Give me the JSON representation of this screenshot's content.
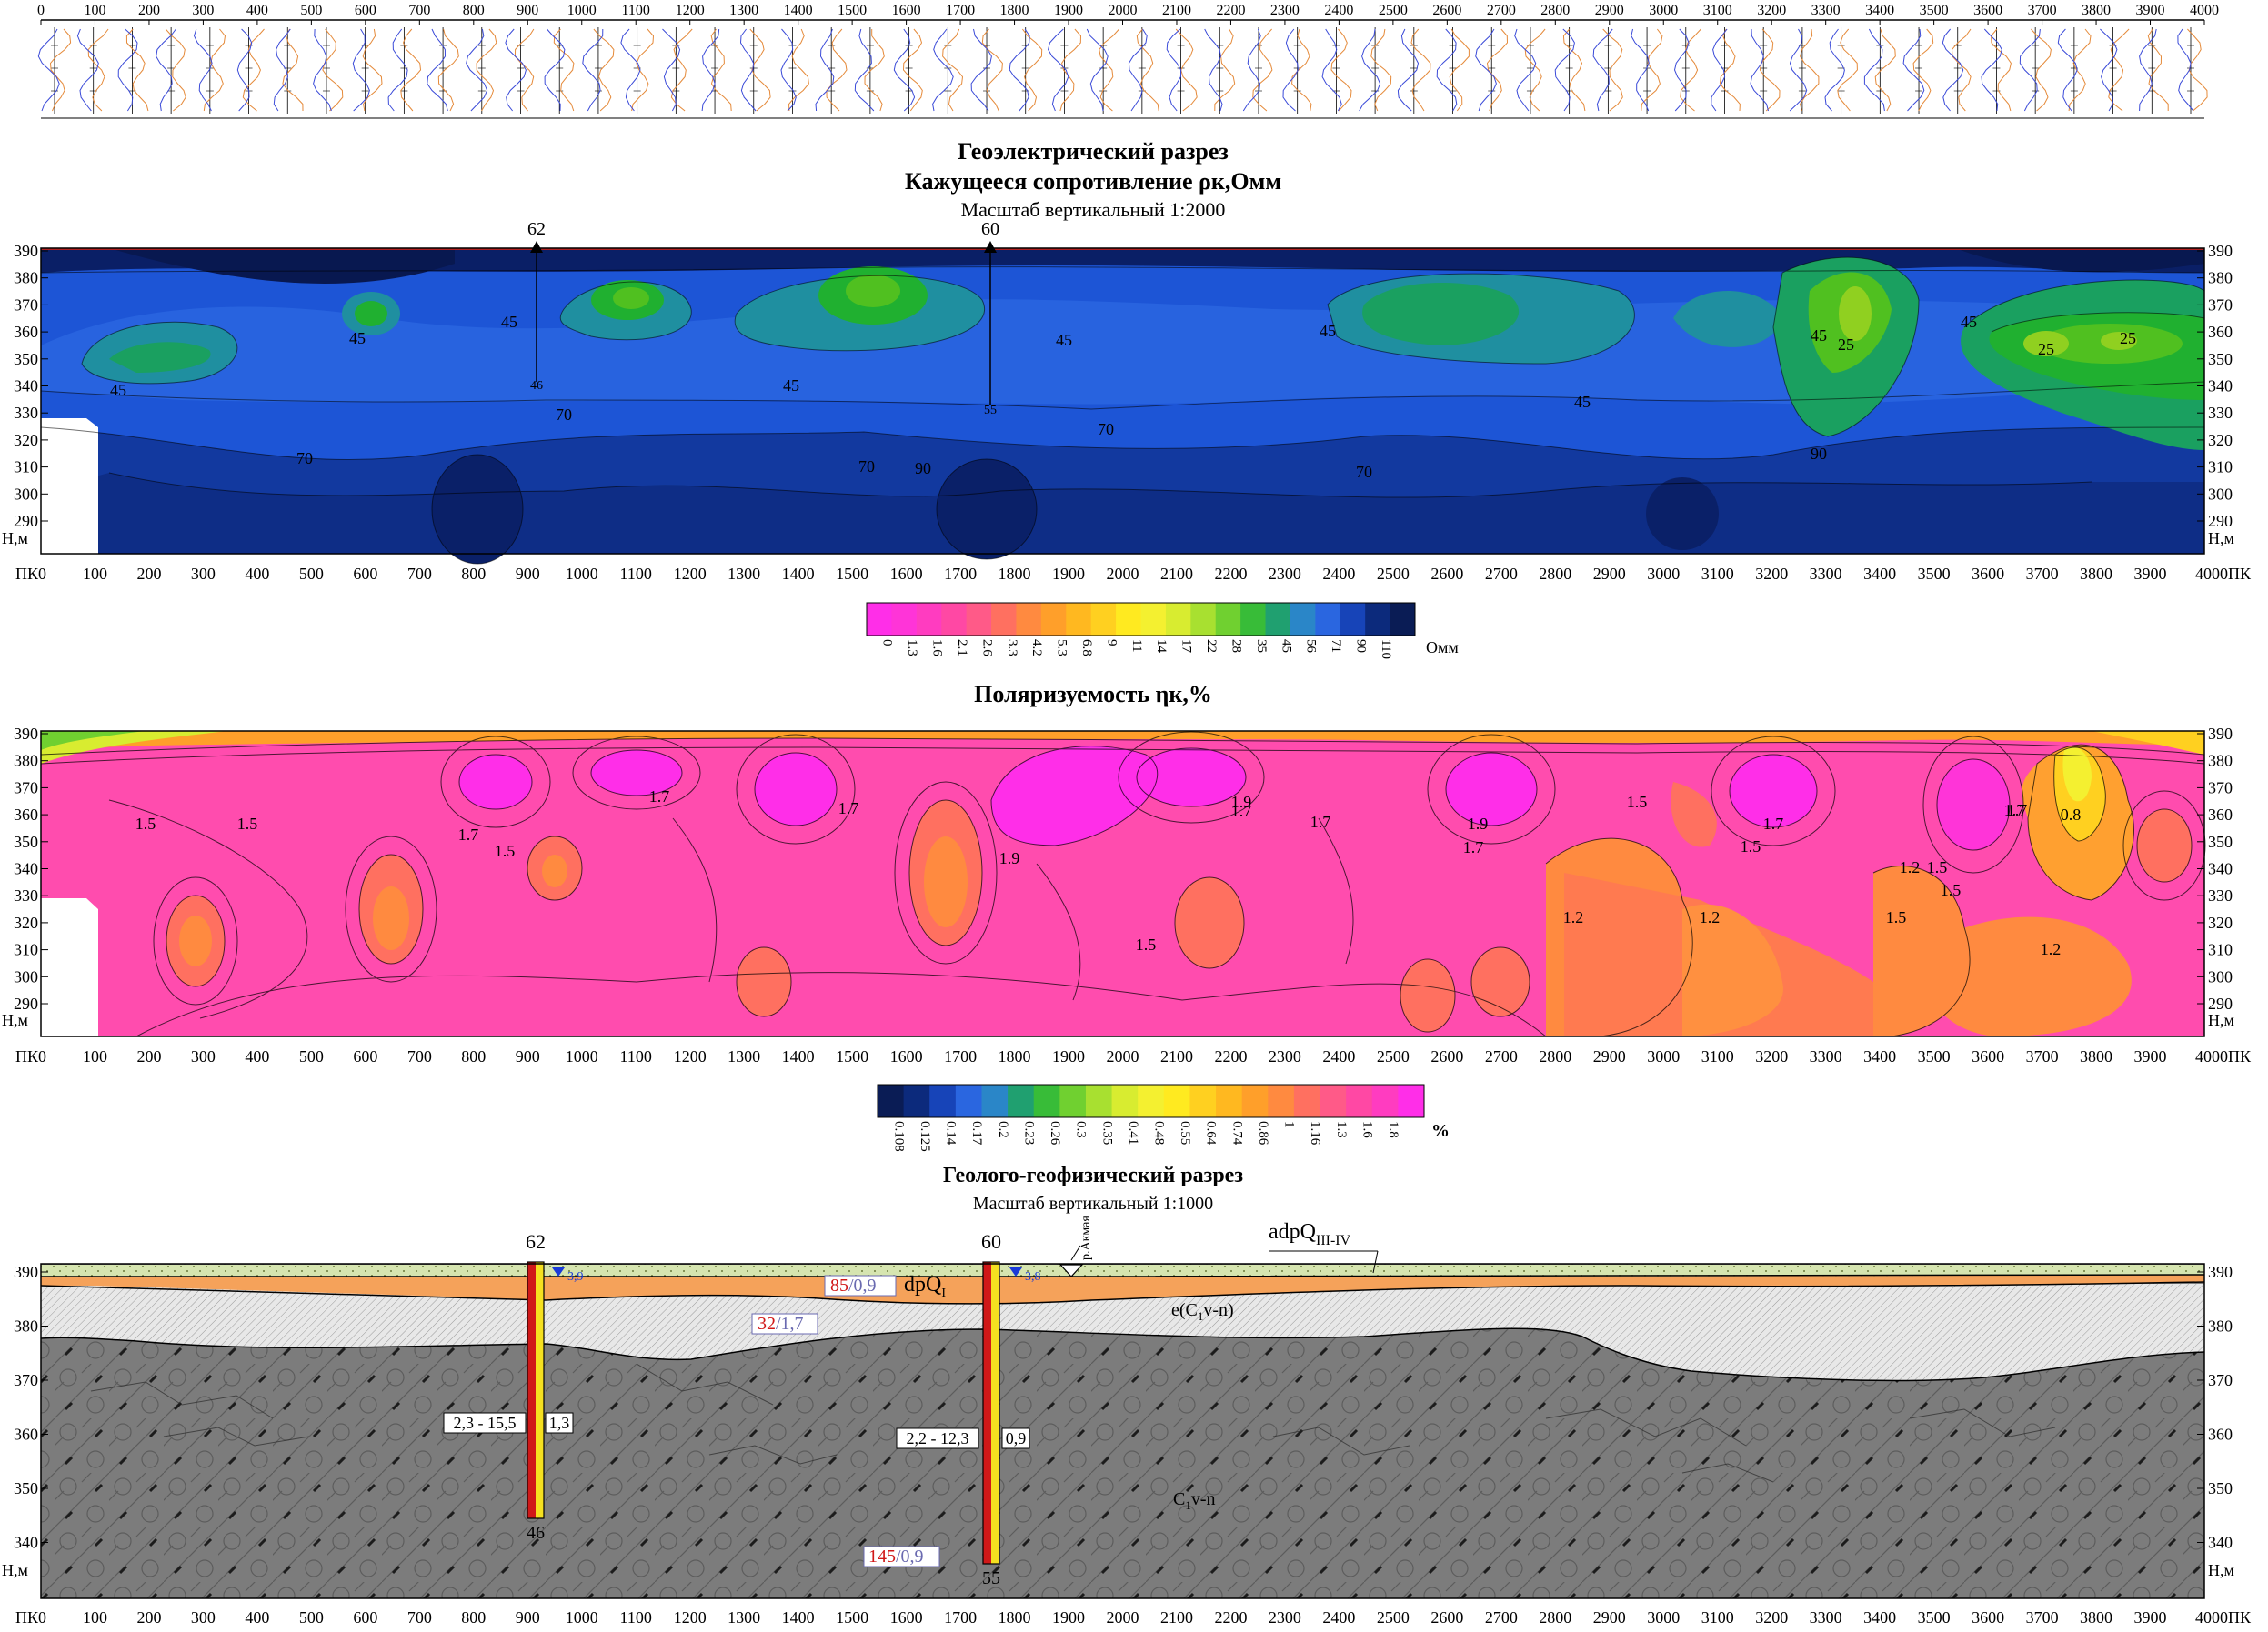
{
  "top_strip": {
    "ticks": [
      "0",
      "100",
      "200",
      "300",
      "400",
      "500",
      "600",
      "700",
      "800",
      "900",
      "1000",
      "1100",
      "1200",
      "1300",
      "1400",
      "1500",
      "1600",
      "1700",
      "1800",
      "1900",
      "2000",
      "2100",
      "2200",
      "2300",
      "2400",
      "2500",
      "2600",
      "2700",
      "2800",
      "2900",
      "3000",
      "3100",
      "3200",
      "3300",
      "3400",
      "3500",
      "3600",
      "3700",
      "3800",
      "3900",
      "4000"
    ]
  },
  "resistivity": {
    "title": "Геоэлектрический разрез",
    "subtitle": "Кажущееся сопротивление  ρк,Омм",
    "scale": "Масштаб вертикальный 1:2000",
    "well_labels": [
      "62",
      "60"
    ],
    "well_bottoms": [
      "46",
      "55"
    ],
    "contour_labels": [
      "45",
      "45",
      "45",
      "45",
      "45",
      "45",
      "45",
      "45",
      "45",
      "25",
      "25",
      "25",
      "70",
      "70",
      "70",
      "70",
      "70",
      "90",
      "90"
    ],
    "colors": [
      "#0a1f66",
      "#0c2d8c",
      "#1748c0",
      "#2a66e0",
      "#2f7fd8",
      "#1f8fa0",
      "#1aa060",
      "#20b030",
      "#50c020",
      "#90d020"
    ],
    "legend": {
      "values": [
        "0",
        "1.3",
        "1.6",
        "2.1",
        "2.6",
        "3.3",
        "4.2",
        "5.3",
        "6.8",
        "9",
        "11",
        "14",
        "17",
        "22",
        "28",
        "35",
        "45",
        "56",
        "71",
        "90",
        "110"
      ],
      "colors": [
        "#ff2ee8",
        "#ff34d8",
        "#ff3cc0",
        "#ff48a4",
        "#ff5a88",
        "#ff7060",
        "#ff8a40",
        "#ff9f2a",
        "#ffb820",
        "#ffd020",
        "#ffea20",
        "#f4f030",
        "#d8ec30",
        "#a8e030",
        "#70d030",
        "#38bc38",
        "#20a070",
        "#2a86c8",
        "#2a66e0",
        "#1744b8",
        "#0c2a7c",
        "#0a1c55"
      ],
      "unit": "Омм"
    }
  },
  "polarizability": {
    "title": "Поляризуемость  ηк,%",
    "contour_labels": [
      "1.5",
      "1.5",
      "1.7",
      "1.5",
      "1.7",
      "1.7",
      "1.5",
      "1.9",
      "1.9",
      "1.7",
      "1.7",
      "1.9",
      "1.7",
      "1.5",
      "1.5",
      "1.7",
      "1.5",
      "1.2",
      "1.5",
      "1.2",
      "1.2",
      "1.5",
      "1.2",
      "1.7",
      "1.7",
      "0.8"
    ],
    "legend": {
      "values": [
        "0.108",
        "0.125",
        "0.14",
        "0.17",
        "0.2",
        "0.23",
        "0.26",
        "0.3",
        "0.35",
        "0.41",
        "0.48",
        "0.55",
        "0.64",
        "0.74",
        "0.86",
        "1",
        "1.16",
        "1.3",
        "1.6",
        "1.8"
      ],
      "colors": [
        "#0a1c55",
        "#0c2a7c",
        "#1744b8",
        "#2a66e0",
        "#2a86c8",
        "#20a070",
        "#38bc38",
        "#70d030",
        "#a8e030",
        "#d8ec30",
        "#f4f030",
        "#ffea20",
        "#ffd020",
        "#ffb820",
        "#ff9f2a",
        "#ff8a40",
        "#ff7060",
        "#ff5a88",
        "#ff48a4",
        "#ff3cc0",
        "#ff2ee8"
      ],
      "unit": "%"
    }
  },
  "geology": {
    "title": "Геолого-геофизический разрез",
    "scale": "Масштаб вертикальный 1:1000",
    "well_labels": [
      "62",
      "60"
    ],
    "well_bottoms": [
      "46",
      "55"
    ],
    "water_levels": [
      "3,9",
      "3,8"
    ],
    "river": "р.Акмая",
    "layer_labels": {
      "adpq_main": "adpQ",
      "adpq_sub": "III-IV",
      "dpq_main": "dpQ",
      "dpq_sub": "I",
      "ec_a": "e(C",
      "ec_sub": "1",
      "ec_b": "v-n)",
      "c_main": "C",
      "c_sub": "1",
      "c_tail": "v-n"
    },
    "resist_boxes": [
      {
        "red": "85",
        "blue": "/0,9"
      },
      {
        "red": "32",
        "blue": "/1,7"
      },
      {
        "red": "145",
        "blue": "/0,9"
      }
    ],
    "well_ranges": [
      "2,3 - 15,5",
      "1,3",
      "2,2 - 12,3",
      "0,9"
    ]
  },
  "axes": {
    "pk_label": "ПК",
    "h_label": "Н,м",
    "pk_values": [
      "0",
      "100",
      "200",
      "300",
      "400",
      "500",
      "600",
      "700",
      "800",
      "900",
      "1000",
      "1100",
      "1200",
      "1300",
      "1400",
      "1500",
      "1600",
      "1700",
      "1800",
      "1900",
      "2000",
      "2100",
      "2200",
      "2300",
      "2400",
      "2500",
      "2600",
      "2700",
      "2800",
      "2900",
      "3000",
      "3100",
      "3200",
      "3300",
      "3400",
      "3500",
      "3600",
      "3700",
      "3800",
      "3900",
      "4000"
    ],
    "h_upper": [
      "390",
      "380",
      "370",
      "360",
      "350",
      "340",
      "330",
      "320",
      "310",
      "300",
      "290"
    ],
    "h_geo": [
      "390",
      "380",
      "370",
      "360",
      "350",
      "340"
    ]
  },
  "colors": {
    "pol_base": "#ff4cae",
    "pol_orange": "#ff8a40",
    "pol_magenta": "#ff2ee8",
    "res_base": "#1d55d6",
    "geo_grey": "#7c7c7c",
    "geo_loam": "#d6e5b0",
    "geo_orange": "#f5a25a",
    "geo_hatch": "#dcdcdc",
    "well_red": "#d01818",
    "well_yellow": "#f5e020"
  }
}
